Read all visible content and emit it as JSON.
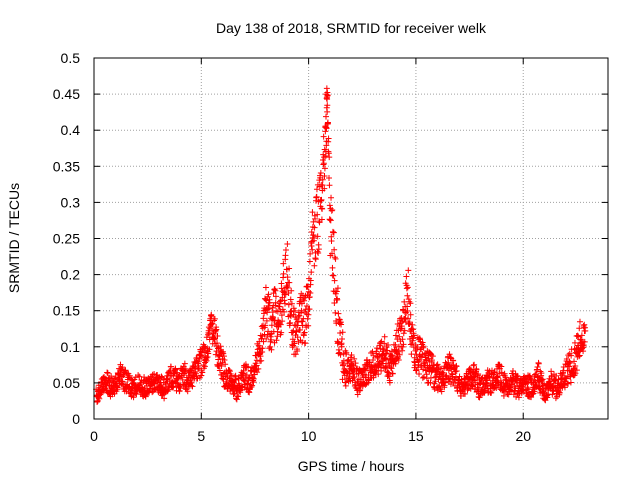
{
  "chart_data": {
    "type": "scatter",
    "title": "Day 138 of 2018, SRMTID for receiver welk",
    "xlabel": "GPS time / hours",
    "ylabel": "SRMTID / TECUs",
    "xlim": [
      0,
      23.95
    ],
    "ylim": [
      0,
      0.5
    ],
    "x_ticks": [
      0,
      5,
      10,
      15,
      20
    ],
    "y_ticks": [
      0,
      0.05,
      0.1,
      0.15,
      0.2,
      0.25,
      0.3,
      0.35,
      0.4,
      0.45,
      0.5
    ],
    "x_tick_labels": [
      "0",
      "5",
      "10",
      "15",
      "20"
    ],
    "y_tick_labels": [
      "0",
      "0.05",
      "0.1",
      "0.15",
      "0.2",
      "0.25",
      "0.3",
      "0.35",
      "0.4",
      "0.45",
      "0.5"
    ],
    "grid": true,
    "marker": "+",
    "marker_color": "#ff0000",
    "series": [
      {
        "name": "SRMTID",
        "x": [
          0.1,
          0.3,
          0.6,
          0.9,
          1.2,
          1.5,
          1.8,
          2.1,
          2.4,
          2.7,
          3.0,
          3.3,
          3.6,
          3.9,
          4.2,
          4.5,
          4.8,
          5.1,
          5.3,
          5.5,
          5.8,
          6.1,
          6.4,
          6.7,
          7.0,
          7.3,
          7.6,
          7.8,
          8.0,
          8.2,
          8.4,
          8.6,
          8.8,
          9.0,
          9.2,
          9.4,
          9.6,
          9.8,
          10.0,
          10.1,
          10.3,
          10.5,
          10.6,
          10.7,
          10.8,
          10.85,
          10.9,
          11.0,
          11.2,
          11.4,
          11.6,
          11.8,
          12.0,
          12.3,
          12.6,
          12.9,
          13.2,
          13.5,
          13.8,
          14.1,
          14.4,
          14.6,
          14.8,
          15.0,
          15.3,
          15.6,
          15.9,
          16.2,
          16.5,
          16.8,
          17.1,
          17.4,
          17.7,
          18.0,
          18.3,
          18.6,
          18.9,
          19.2,
          19.5,
          19.8,
          20.1,
          20.4,
          20.7,
          21.0,
          21.3,
          21.6,
          21.9,
          22.2,
          22.5,
          22.7
        ],
        "y": [
          0.03,
          0.04,
          0.05,
          0.04,
          0.06,
          0.05,
          0.04,
          0.05,
          0.04,
          0.05,
          0.05,
          0.04,
          0.06,
          0.05,
          0.06,
          0.05,
          0.07,
          0.08,
          0.1,
          0.13,
          0.09,
          0.06,
          0.05,
          0.04,
          0.06,
          0.05,
          0.08,
          0.1,
          0.15,
          0.12,
          0.14,
          0.12,
          0.17,
          0.2,
          0.13,
          0.11,
          0.14,
          0.13,
          0.16,
          0.22,
          0.25,
          0.28,
          0.3,
          0.34,
          0.38,
          0.45,
          0.42,
          0.27,
          0.2,
          0.12,
          0.08,
          0.06,
          0.07,
          0.05,
          0.06,
          0.07,
          0.08,
          0.09,
          0.07,
          0.1,
          0.12,
          0.18,
          0.1,
          0.09,
          0.08,
          0.07,
          0.06,
          0.05,
          0.07,
          0.06,
          0.04,
          0.05,
          0.06,
          0.04,
          0.05,
          0.05,
          0.06,
          0.04,
          0.05,
          0.04,
          0.05,
          0.04,
          0.06,
          0.03,
          0.05,
          0.04,
          0.06,
          0.07,
          0.09,
          0.11
        ],
        "spread": [
          0.012,
          0.012,
          0.015,
          0.013,
          0.017,
          0.015,
          0.013,
          0.015,
          0.013,
          0.015,
          0.015,
          0.013,
          0.018,
          0.016,
          0.018,
          0.016,
          0.02,
          0.022,
          0.022,
          0.025,
          0.022,
          0.018,
          0.016,
          0.013,
          0.018,
          0.016,
          0.022,
          0.028,
          0.04,
          0.035,
          0.04,
          0.035,
          0.04,
          0.045,
          0.035,
          0.03,
          0.035,
          0.035,
          0.04,
          0.05,
          0.05,
          0.05,
          0.045,
          0.05,
          0.05,
          0.02,
          0.03,
          0.05,
          0.05,
          0.035,
          0.025,
          0.018,
          0.02,
          0.016,
          0.018,
          0.02,
          0.022,
          0.025,
          0.022,
          0.028,
          0.03,
          0.04,
          0.03,
          0.028,
          0.025,
          0.022,
          0.018,
          0.016,
          0.02,
          0.018,
          0.013,
          0.016,
          0.018,
          0.013,
          0.016,
          0.016,
          0.018,
          0.013,
          0.016,
          0.013,
          0.016,
          0.013,
          0.018,
          0.01,
          0.016,
          0.013,
          0.02,
          0.025,
          0.03,
          0.02
        ]
      }
    ]
  }
}
